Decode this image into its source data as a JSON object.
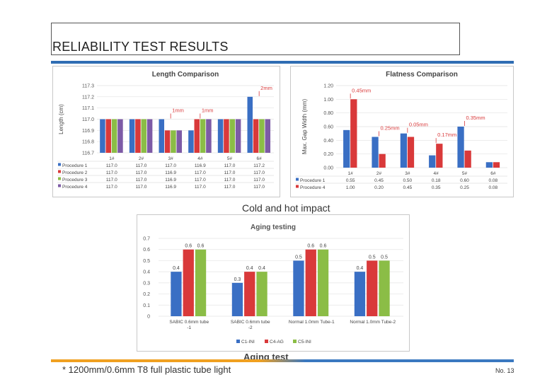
{
  "page": {
    "title": "RELIABILITY TEST RESULTS",
    "caption_cold": "Cold and hot impact",
    "caption_aging": "Aging test",
    "footnote": "* 1200mm/0.6mm T8 full plastic tube light",
    "page_number": "No. 13"
  },
  "chart_data": [
    {
      "type": "bar",
      "title": "Length Comparison",
      "ylabel": "Length (cm)",
      "ylim": [
        116.7,
        117.3
      ],
      "yticks": [
        "117.3",
        "117.2",
        "117.1",
        "117.0",
        "116.9",
        "116.8",
        "116.7"
      ],
      "categories": [
        "1#",
        "2#",
        "3#",
        "4#",
        "5#",
        "6#"
      ],
      "series": [
        {
          "name": "Procedure 1",
          "color": "#3a6fc4",
          "values": [
            117.0,
            117.0,
            117.0,
            116.9,
            117.0,
            117.2
          ],
          "labels": [
            "117.0",
            "117.0",
            "117.0",
            "116.9",
            "117.0",
            "117.2"
          ]
        },
        {
          "name": "Procedure 2",
          "color": "#d9393a",
          "values": [
            117.0,
            117.0,
            116.9,
            117.0,
            117.0,
            117.0
          ],
          "labels": [
            "117.0",
            "117.0",
            "116.9",
            "117.0",
            "117.0",
            "117.0"
          ]
        },
        {
          "name": "Procedure 3",
          "color": "#8bbd46",
          "values": [
            117.0,
            117.0,
            116.9,
            117.0,
            117.0,
            117.0
          ],
          "labels": [
            "117.0",
            "117.0",
            "116.9",
            "117.0",
            "117.0",
            "117.0"
          ]
        },
        {
          "name": "Procedure 4",
          "color": "#7d5ba6",
          "values": [
            117.0,
            117.0,
            116.9,
            117.0,
            117.0,
            117.0
          ],
          "labels": [
            "117.0",
            "117.0",
            "116.9",
            "117.0",
            "117.0",
            "117.0"
          ]
        }
      ],
      "annotations": [
        {
          "text": "1mm",
          "category": "3#"
        },
        {
          "text": "1mm",
          "category": "4#"
        },
        {
          "text": "2mm",
          "category": "6#"
        }
      ],
      "annotation_color": "#d9393a",
      "grid": true,
      "legend": "table-left"
    },
    {
      "type": "bar",
      "title": "Flatness Comparison",
      "ylabel": "Max. Gap Width (mm)",
      "ylim": [
        0,
        1.2
      ],
      "yticks": [
        "1.20",
        "1.00",
        "0.80",
        "0.60",
        "0.40",
        "0.20",
        "0.00"
      ],
      "categories": [
        "1#",
        "2#",
        "3#",
        "4#",
        "5#",
        "6#"
      ],
      "series": [
        {
          "name": "Procedure 1",
          "color": "#3a6fc4",
          "values": [
            0.55,
            0.45,
            0.5,
            0.18,
            0.6,
            0.08
          ],
          "labels": [
            "0.55",
            "0.45",
            "0.50",
            "0.18",
            "0.60",
            "0.08"
          ]
        },
        {
          "name": "Procedure 4",
          "color": "#d9393a",
          "values": [
            1.0,
            0.2,
            0.45,
            0.35,
            0.25,
            0.08
          ],
          "labels": [
            "1.00",
            "0.20",
            "0.45",
            "0.35",
            "0.25",
            "0.08"
          ]
        }
      ],
      "annotations": [
        {
          "text": "0.45mm",
          "category": "1#"
        },
        {
          "text": "0.25mm",
          "category": "2#"
        },
        {
          "text": "0.05mm",
          "category": "3#"
        },
        {
          "text": "0.17mm",
          "category": "4#"
        },
        {
          "text": "0.35mm",
          "category": "5#"
        }
      ],
      "annotation_color": "#d9393a",
      "grid": true,
      "legend": "table-left"
    },
    {
      "type": "bar",
      "title": "Aging testing",
      "ylim": [
        0,
        0.7
      ],
      "yticks": [
        "0.7",
        "0.6",
        "0.5",
        "0.4",
        "0.3",
        "0.2",
        "0.1",
        "0"
      ],
      "categories": [
        "SABIC 0.6mm tube -1",
        "SABIC 0.6mm tube -2",
        "Normal 1.0mm Tube-1",
        "Normal 1.0mm Tube-2"
      ],
      "series": [
        {
          "name": "C1-INI",
          "color": "#3a6fc4",
          "values": [
            0.4,
            0.3,
            0.5,
            0.4
          ],
          "labels": [
            "0.4",
            "0.3",
            "0.5",
            "0.4"
          ]
        },
        {
          "name": "C4-AG",
          "color": "#d9393a",
          "values": [
            0.6,
            0.4,
            0.6,
            0.5
          ],
          "labels": [
            "0.6",
            "0.4",
            "0.6",
            "0.5"
          ]
        },
        {
          "name": "C5-INI",
          "color": "#8bbd46",
          "values": [
            0.6,
            0.4,
            0.6,
            0.5
          ],
          "labels": [
            "0.6",
            "0.4",
            "0.6",
            "0.5"
          ]
        }
      ],
      "grid": true,
      "legend": "bottom-center"
    }
  ]
}
